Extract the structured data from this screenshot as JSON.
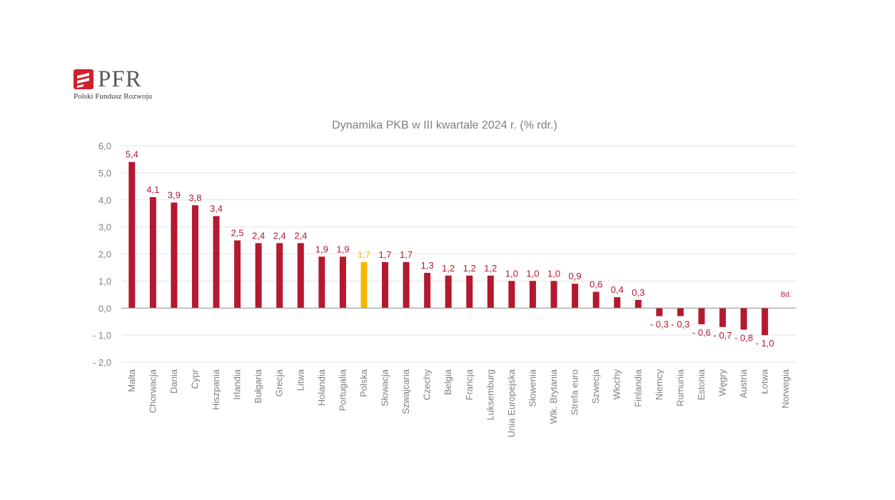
{
  "logo": {
    "name": "PFR",
    "subtitle": "Polski Fundusz Rozwoju"
  },
  "chart_data": {
    "type": "bar",
    "title": "Dynamika PKB w III kwartale 2024 r. (% rdr.)",
    "xlabel": "",
    "ylabel": "",
    "ylim": [
      -2.0,
      6.0
    ],
    "yticks": [
      6.0,
      5.0,
      4.0,
      3.0,
      2.0,
      1.0,
      0.0,
      -1.0,
      -2.0
    ],
    "ytick_labels": [
      "6,0",
      "5,0",
      "4,0",
      "3,0",
      "2,0",
      "1,0",
      "0,0",
      "- 1,0",
      "- 2,0"
    ],
    "grid": true,
    "legend": "none",
    "categories": [
      "Malta",
      "Chorwacja",
      "Dania",
      "Cypr",
      "Hiszpania",
      "Irlandia",
      "Bułgaria",
      "Grecja",
      "Litwa",
      "Holandia",
      "Portugalia",
      "Polska",
      "Słowacja",
      "Szwajcaria",
      "Czechy",
      "Belgia",
      "Francja",
      "Luksemburg",
      "Unia Europejska",
      "Słowenia",
      "Wlk. Brytania",
      "Strefa euro",
      "Szwecja",
      "Włochy",
      "Finlandia",
      "Niemcy",
      "Rumunia",
      "Estonia",
      "Węgry",
      "Austria",
      "Łotwa",
      "Norwegia"
    ],
    "values": [
      5.4,
      4.1,
      3.9,
      3.8,
      3.4,
      2.5,
      2.4,
      2.4,
      2.4,
      1.9,
      1.9,
      1.7,
      1.7,
      1.7,
      1.3,
      1.2,
      1.2,
      1.2,
      1.0,
      1.0,
      1.0,
      0.9,
      0.6,
      0.4,
      0.3,
      -0.3,
      -0.3,
      -0.6,
      -0.7,
      -0.8,
      -1.0,
      null
    ],
    "data_labels": [
      "5,4",
      "4,1",
      "3,9",
      "3,8",
      "3,4",
      "2,5",
      "2,4",
      "2,4",
      "2,4",
      "1,9",
      "1,9",
      "1,7",
      "1,7",
      "1,7",
      "1,3",
      "1,2",
      "1,2",
      "1,2",
      "1,0",
      "1,0",
      "1,0",
      "0,9",
      "0,6",
      "0,4",
      "0,3",
      "- 0,3",
      "- 0,3",
      "- 0,6",
      "- 0,7",
      "- 0,8",
      "- 1,0",
      "Bd."
    ],
    "highlight_category": "Polska",
    "colors": {
      "bar": "#b5192f",
      "highlight": "#f5b800",
      "grid": "#e3e3e3",
      "axis": "#8c8c8c",
      "text": "#808080",
      "logo": "#d0212e"
    }
  }
}
